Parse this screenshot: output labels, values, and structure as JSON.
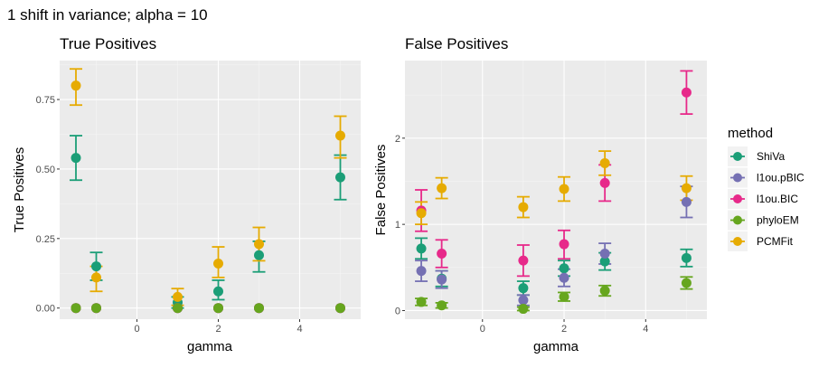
{
  "figure_title": "1 shift in variance; alpha = 10",
  "legend": {
    "title": "method",
    "entries": [
      {
        "label": "ShiVa",
        "color": "#1b9e77"
      },
      {
        "label": "l1ou.pBIC",
        "color": "#7570b3"
      },
      {
        "label": "l1ou.BIC",
        "color": "#e7298a"
      },
      {
        "label": "phyloEM",
        "color": "#66a61e"
      },
      {
        "label": "PCMFit",
        "color": "#e6ab02"
      }
    ]
  },
  "colors": {
    "panel_bg": "#ebebeb",
    "grid_major": "#ffffff",
    "ShiVa": "#1b9e77",
    "l1ou.pBIC": "#7570b3",
    "l1ou.BIC": "#e7298a",
    "phyloEM": "#66a61e",
    "PCMFit": "#e6ab02"
  },
  "chart_data": [
    {
      "type": "scatter",
      "title": "True Positives",
      "xlabel": "gamma",
      "ylabel": "True Positives",
      "xlim": [
        -1.9,
        5.5
      ],
      "ylim": [
        -0.04,
        0.89
      ],
      "xticks": [
        0,
        2,
        4
      ],
      "xtick_labels": [
        "0",
        "2",
        "4"
      ],
      "yticks": [
        0,
        0.25,
        0.5,
        0.75
      ],
      "ytick_labels": [
        "0.00",
        "0.25",
        "0.50",
        "0.75"
      ],
      "grid": true,
      "series": [
        {
          "name": "ShiVa",
          "points": [
            {
              "x": -1.5,
              "y": 0.54,
              "lo": 0.46,
              "hi": 0.62
            },
            {
              "x": -1.0,
              "y": 0.15,
              "lo": 0.1,
              "hi": 0.2
            },
            {
              "x": 1.0,
              "y": 0.02,
              "lo": 0.0,
              "hi": 0.04
            },
            {
              "x": 2.0,
              "y": 0.06,
              "lo": 0.03,
              "hi": 0.1
            },
            {
              "x": 3.0,
              "y": 0.19,
              "lo": 0.13,
              "hi": 0.24
            },
            {
              "x": 5.0,
              "y": 0.47,
              "lo": 0.39,
              "hi": 0.55
            }
          ]
        },
        {
          "name": "l1ou.pBIC",
          "points": [
            {
              "x": -1.5,
              "y": 0.0
            },
            {
              "x": -1.0,
              "y": 0.0
            },
            {
              "x": 1.0,
              "y": 0.0
            },
            {
              "x": 2.0,
              "y": 0.0
            },
            {
              "x": 3.0,
              "y": 0.0
            },
            {
              "x": 5.0,
              "y": 0.0
            }
          ]
        },
        {
          "name": "l1ou.BIC",
          "points": [
            {
              "x": -1.5,
              "y": 0.0
            },
            {
              "x": -1.0,
              "y": 0.0
            },
            {
              "x": 1.0,
              "y": 0.0
            },
            {
              "x": 2.0,
              "y": 0.0
            },
            {
              "x": 3.0,
              "y": 0.0
            },
            {
              "x": 5.0,
              "y": 0.0
            }
          ]
        },
        {
          "name": "phyloEM",
          "points": [
            {
              "x": -1.5,
              "y": 0.0
            },
            {
              "x": -1.0,
              "y": 0.0
            },
            {
              "x": 1.0,
              "y": 0.0
            },
            {
              "x": 2.0,
              "y": 0.0
            },
            {
              "x": 3.0,
              "y": 0.0
            },
            {
              "x": 5.0,
              "y": 0.0
            }
          ]
        },
        {
          "name": "PCMFit",
          "points": [
            {
              "x": -1.5,
              "y": 0.8,
              "lo": 0.73,
              "hi": 0.86
            },
            {
              "x": -1.0,
              "y": 0.11,
              "lo": 0.06,
              "hi": 0.15
            },
            {
              "x": 1.0,
              "y": 0.04,
              "lo": 0.01,
              "hi": 0.07
            },
            {
              "x": 2.0,
              "y": 0.16,
              "lo": 0.11,
              "hi": 0.22
            },
            {
              "x": 3.0,
              "y": 0.23,
              "lo": 0.17,
              "hi": 0.29
            },
            {
              "x": 5.0,
              "y": 0.62,
              "lo": 0.54,
              "hi": 0.69
            }
          ]
        }
      ]
    },
    {
      "type": "scatter",
      "title": "False Positives",
      "xlabel": "gamma",
      "ylabel": "False Positives",
      "xlim": [
        -1.9,
        5.5
      ],
      "ylim": [
        -0.1,
        2.9
      ],
      "xticks": [
        0,
        2,
        4
      ],
      "xtick_labels": [
        "0",
        "2",
        "4"
      ],
      "yticks": [
        0,
        1,
        2
      ],
      "ytick_labels": [
        "0",
        "1",
        "2"
      ],
      "grid": true,
      "series": [
        {
          "name": "ShiVa",
          "points": [
            {
              "x": -1.5,
              "y": 0.72,
              "lo": 0.6,
              "hi": 0.84
            },
            {
              "x": -1.0,
              "y": 0.37,
              "lo": 0.28,
              "hi": 0.46
            },
            {
              "x": 1.0,
              "y": 0.26,
              "lo": 0.18,
              "hi": 0.34
            },
            {
              "x": 2.0,
              "y": 0.49,
              "lo": 0.4,
              "hi": 0.58
            },
            {
              "x": 3.0,
              "y": 0.57,
              "lo": 0.47,
              "hi": 0.67
            },
            {
              "x": 5.0,
              "y": 0.61,
              "lo": 0.51,
              "hi": 0.71
            }
          ]
        },
        {
          "name": "l1ou.pBIC",
          "points": [
            {
              "x": -1.5,
              "y": 0.46,
              "lo": 0.34,
              "hi": 0.58
            },
            {
              "x": -1.0,
              "y": 0.36,
              "lo": 0.26,
              "hi": 0.46
            },
            {
              "x": 1.0,
              "y": 0.12,
              "lo": 0.06,
              "hi": 0.18
            },
            {
              "x": 2.0,
              "y": 0.38,
              "lo": 0.28,
              "hi": 0.48
            },
            {
              "x": 3.0,
              "y": 0.66,
              "lo": 0.54,
              "hi": 0.78
            },
            {
              "x": 5.0,
              "y": 1.26,
              "lo": 1.08,
              "hi": 1.44
            }
          ]
        },
        {
          "name": "l1ou.BIC",
          "points": [
            {
              "x": -1.5,
              "y": 1.16,
              "lo": 0.92,
              "hi": 1.4
            },
            {
              "x": -1.0,
              "y": 0.66,
              "lo": 0.5,
              "hi": 0.82
            },
            {
              "x": 1.0,
              "y": 0.58,
              "lo": 0.4,
              "hi": 0.76
            },
            {
              "x": 2.0,
              "y": 0.77,
              "lo": 0.6,
              "hi": 0.93
            },
            {
              "x": 3.0,
              "y": 1.48,
              "lo": 1.27,
              "hi": 1.69
            },
            {
              "x": 5.0,
              "y": 2.53,
              "lo": 2.28,
              "hi": 2.78
            }
          ]
        },
        {
          "name": "phyloEM",
          "points": [
            {
              "x": -1.5,
              "y": 0.1,
              "lo": 0.06,
              "hi": 0.14
            },
            {
              "x": -1.0,
              "y": 0.06,
              "lo": 0.03,
              "hi": 0.09
            },
            {
              "x": 1.0,
              "y": 0.02,
              "lo": 0.0,
              "hi": 0.04
            },
            {
              "x": 2.0,
              "y": 0.16,
              "lo": 0.11,
              "hi": 0.21
            },
            {
              "x": 3.0,
              "y": 0.23,
              "lo": 0.17,
              "hi": 0.29
            },
            {
              "x": 5.0,
              "y": 0.32,
              "lo": 0.25,
              "hi": 0.39
            }
          ]
        },
        {
          "name": "PCMFit",
          "points": [
            {
              "x": -1.5,
              "y": 1.13,
              "lo": 1.0,
              "hi": 1.26
            },
            {
              "x": -1.0,
              "y": 1.42,
              "lo": 1.3,
              "hi": 1.54
            },
            {
              "x": 1.0,
              "y": 1.2,
              "lo": 1.08,
              "hi": 1.32
            },
            {
              "x": 2.0,
              "y": 1.41,
              "lo": 1.27,
              "hi": 1.55
            },
            {
              "x": 3.0,
              "y": 1.71,
              "lo": 1.57,
              "hi": 1.85
            },
            {
              "x": 5.0,
              "y": 1.42,
              "lo": 1.28,
              "hi": 1.56
            }
          ]
        }
      ]
    }
  ]
}
